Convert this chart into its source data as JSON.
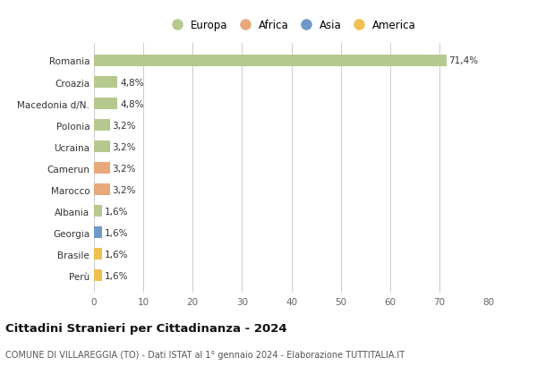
{
  "categories": [
    "Romania",
    "Croazia",
    "Macedonia d/N.",
    "Polonia",
    "Ucraina",
    "Camerun",
    "Marocco",
    "Albania",
    "Georgia",
    "Brasile",
    "Perù"
  ],
  "values": [
    71.4,
    4.8,
    4.8,
    3.2,
    3.2,
    3.2,
    3.2,
    1.6,
    1.6,
    1.6,
    1.6
  ],
  "labels": [
    "71,4%",
    "4,8%",
    "4,8%",
    "3,2%",
    "3,2%",
    "3,2%",
    "3,2%",
    "1,6%",
    "1,6%",
    "1,6%",
    "1,6%"
  ],
  "colors": [
    "#b5c98e",
    "#b5c98e",
    "#b5c98e",
    "#b5c98e",
    "#b5c98e",
    "#e8a87c",
    "#e8a87c",
    "#b5c98e",
    "#7098c8",
    "#f0c050",
    "#f0c050"
  ],
  "legend": [
    {
      "label": "Europa",
      "color": "#b5c98e"
    },
    {
      "label": "Africa",
      "color": "#e8a87c"
    },
    {
      "label": "Asia",
      "color": "#7098c8"
    },
    {
      "label": "America",
      "color": "#f0c050"
    }
  ],
  "xlim": [
    0,
    80
  ],
  "xticks": [
    0,
    10,
    20,
    30,
    40,
    50,
    60,
    70,
    80
  ],
  "title": "Cittadini Stranieri per Cittadinanza - 2024",
  "subtitle": "COMUNE DI VILLAREGGIA (TO) - Dati ISTAT al 1° gennaio 2024 - Elaborazione TUTTITALIA.IT",
  "background_color": "#ffffff",
  "grid_color": "#cccccc",
  "bar_height": 0.55
}
